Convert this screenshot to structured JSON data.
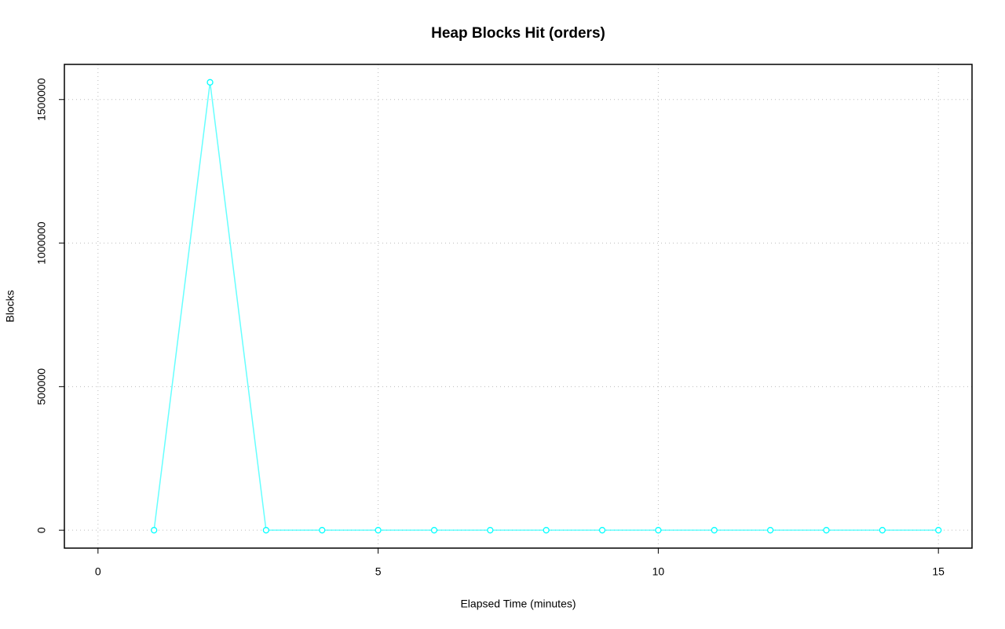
{
  "chart_data": {
    "type": "line",
    "title": "Heap Blocks Hit (orders)",
    "x_label": "Elapsed Time (minutes)",
    "y_label": "Blocks",
    "x": [
      1,
      2,
      3,
      4,
      5,
      6,
      7,
      8,
      9,
      10,
      11,
      12,
      13,
      14,
      15
    ],
    "values": [
      0,
      1560000,
      0,
      0,
      0,
      0,
      0,
      0,
      0,
      0,
      0,
      0,
      0,
      0,
      0
    ],
    "color": "#00ffff",
    "xlim": [
      -0.6,
      15.6
    ],
    "xticks": [
      0,
      5,
      10,
      15
    ],
    "ylim": [
      -62400,
      1622400
    ],
    "yticks": [
      0,
      500000,
      1000000,
      1500000
    ],
    "grid": true
  }
}
